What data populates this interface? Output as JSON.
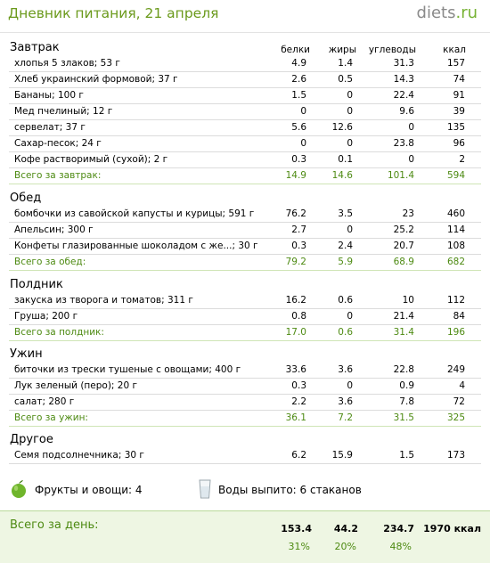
{
  "header": {
    "title": "Дневник питания, 21 апреля",
    "logo_main": "diets",
    "logo_tld": ".ru"
  },
  "columns": {
    "protein": "белки",
    "fat": "жиры",
    "carbs": "углеводы",
    "kcal": "ккал"
  },
  "sections": [
    {
      "title": "Завтрак",
      "items": [
        {
          "name": "хлопья 5 злаков; 53 г",
          "protein": "4.9",
          "fat": "1.4",
          "carbs": "31.3",
          "kcal": "157"
        },
        {
          "name": "Хлеб украинский формовой; 37 г",
          "protein": "2.6",
          "fat": "0.5",
          "carbs": "14.3",
          "kcal": "74"
        },
        {
          "name": "Бананы; 100 г",
          "protein": "1.5",
          "fat": "0",
          "carbs": "22.4",
          "kcal": "91"
        },
        {
          "name": "Мед пчелиный; 12 г",
          "protein": "0",
          "fat": "0",
          "carbs": "9.6",
          "kcal": "39"
        },
        {
          "name": "сервелат; 37 г",
          "protein": "5.6",
          "fat": "12.6",
          "carbs": "0",
          "kcal": "135"
        },
        {
          "name": "Сахар-песок; 24 г",
          "protein": "0",
          "fat": "0",
          "carbs": "23.8",
          "kcal": "96"
        },
        {
          "name": "Кофе растворимый (сухой); 2 г",
          "protein": "0.3",
          "fat": "0.1",
          "carbs": "0",
          "kcal": "2"
        }
      ],
      "total": {
        "label": "Всего за завтрак:",
        "protein": "14.9",
        "fat": "14.6",
        "carbs": "101.4",
        "kcal": "594"
      }
    },
    {
      "title": "Обед",
      "items": [
        {
          "name": "бомбочки из савойской капусты и курицы; 591 г",
          "protein": "76.2",
          "fat": "3.5",
          "carbs": "23",
          "kcal": "460"
        },
        {
          "name": "Апельсин; 300 г",
          "protein": "2.7",
          "fat": "0",
          "carbs": "25.2",
          "kcal": "114"
        },
        {
          "name": "Конфеты глазированные шоколадом с же...; 30 г",
          "protein": "0.3",
          "fat": "2.4",
          "carbs": "20.7",
          "kcal": "108"
        }
      ],
      "total": {
        "label": "Всего за обед:",
        "protein": "79.2",
        "fat": "5.9",
        "carbs": "68.9",
        "kcal": "682"
      }
    },
    {
      "title": "Полдник",
      "items": [
        {
          "name": "закуска из творога и томатов; 311 г",
          "protein": "16.2",
          "fat": "0.6",
          "carbs": "10",
          "kcal": "112"
        },
        {
          "name": "Груша; 200 г",
          "protein": "0.8",
          "fat": "0",
          "carbs": "21.4",
          "kcal": "84"
        }
      ],
      "total": {
        "label": "Всего за полдник:",
        "protein": "17.0",
        "fat": "0.6",
        "carbs": "31.4",
        "kcal": "196"
      }
    },
    {
      "title": "Ужин",
      "items": [
        {
          "name": "биточки из трески тушеные с овощами; 400 г",
          "protein": "33.6",
          "fat": "3.6",
          "carbs": "22.8",
          "kcal": "249"
        },
        {
          "name": "Лук зеленый (перо); 20 г",
          "protein": "0.3",
          "fat": "0",
          "carbs": "0.9",
          "kcal": "4"
        },
        {
          "name": "салат; 280 г",
          "protein": "2.2",
          "fat": "3.6",
          "carbs": "7.8",
          "kcal": "72"
        }
      ],
      "total": {
        "label": "Всего за ужин:",
        "protein": "36.1",
        "fat": "7.2",
        "carbs": "31.5",
        "kcal": "325"
      }
    },
    {
      "title": "Другое",
      "items": [
        {
          "name": "Семя подсолнечника; 30 г",
          "protein": "6.2",
          "fat": "15.9",
          "carbs": "1.5",
          "kcal": "173"
        }
      ]
    }
  ],
  "extras": {
    "fruit_label": "Фрукты и овощи: 4",
    "water_label": "Воды выпито: 6 стаканов",
    "fruit_icon": "green-apple-icon",
    "water_icon": "glass-icon"
  },
  "day_total": {
    "label": "Всего за день:",
    "protein": "153.4",
    "fat": "44.2",
    "carbs": "234.7",
    "kcal": "1970 ккал",
    "protein_pct": "31%",
    "fat_pct": "20%",
    "carbs_pct": "48%"
  },
  "colors": {
    "accent_green": "#4d8a12",
    "title_green": "#6b9a1c",
    "day_bg": "#eef6e3"
  }
}
